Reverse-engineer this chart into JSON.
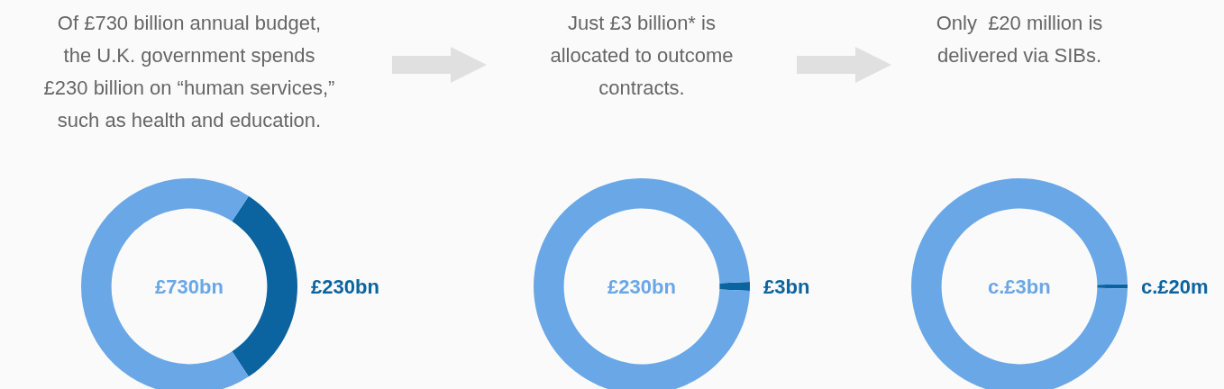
{
  "chart_data": [
    {
      "type": "donut",
      "title": "Of £730 billion annual budget,\nthe U.K. government spends\n£230 billion on “human services,”\nsuch as health and education.",
      "categories": [
        "£230bn",
        null
      ],
      "values": [
        230,
        500
      ],
      "colors": [
        "#0b64a0",
        "#6aa7e6"
      ],
      "annotations": [
        "£730bn"
      ],
      "legend": false
    },
    {
      "type": "donut",
      "title": "Just £3 billion* is\nallocated to outcome\ncontracts.",
      "categories": [
        "£3bn",
        null
      ],
      "values": [
        3,
        227
      ],
      "colors": [
        "#0b64a0",
        "#6aa7e6"
      ],
      "annotations": [
        "£230bn"
      ],
      "legend": false
    },
    {
      "type": "donut",
      "title": "Only  £20 million is\ndelivered via SIBs.",
      "categories": [
        "c.£20m",
        null
      ],
      "values": [
        0.67,
        99.33
      ],
      "colors": [
        "#0b64a0",
        "#6aa7e6"
      ],
      "annotations": [
        "c.£3bn"
      ],
      "legend": false
    }
  ]
}
